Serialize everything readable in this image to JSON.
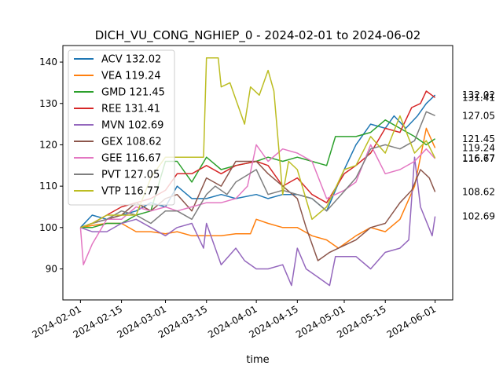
{
  "chart_data": {
    "type": "line",
    "title": "DICH_VU_CONG_NGHIEP_0 - 2024-02-01 to 2024-06-02",
    "xlabel": "time",
    "ylabel": "",
    "x_range": [
      "2024-01-26",
      "2024-06-07"
    ],
    "ylim": [
      82.5,
      144
    ],
    "x_ticks": [
      "2024-02-01",
      "2024-02-15",
      "2024-03-01",
      "2024-03-15",
      "2024-04-01",
      "2024-04-15",
      "2024-05-01",
      "2024-05-15",
      "2024-06-01"
    ],
    "y_ticks": [
      90,
      100,
      110,
      120,
      130,
      140
    ],
    "grid": false,
    "legend_position": "top-left",
    "series": [
      {
        "name": "ACV 132.02",
        "end_label": "132.02",
        "color": "#1f77b4",
        "points": [
          [
            "2024-02-01",
            100
          ],
          [
            "2024-02-05",
            103
          ],
          [
            "2024-02-10",
            102
          ],
          [
            "2024-02-20",
            104
          ],
          [
            "2024-02-25",
            106
          ],
          [
            "2024-03-01",
            105
          ],
          [
            "2024-03-05",
            110
          ],
          [
            "2024-03-10",
            107
          ],
          [
            "2024-03-15",
            107
          ],
          [
            "2024-03-20",
            108
          ],
          [
            "2024-03-25",
            107
          ],
          [
            "2024-04-01",
            108
          ],
          [
            "2024-04-05",
            107
          ],
          [
            "2024-04-10",
            108
          ],
          [
            "2024-04-15",
            108
          ],
          [
            "2024-04-20",
            107
          ],
          [
            "2024-04-25",
            104
          ],
          [
            "2024-05-01",
            114
          ],
          [
            "2024-05-05",
            120
          ],
          [
            "2024-05-10",
            125
          ],
          [
            "2024-05-15",
            124
          ],
          [
            "2024-05-18",
            127
          ],
          [
            "2024-05-22",
            124
          ],
          [
            "2024-05-26",
            127
          ],
          [
            "2024-05-29",
            130
          ],
          [
            "2024-06-01",
            132.02
          ]
        ]
      },
      {
        "name": "VEA 119.24",
        "end_label": "119.24",
        "color": "#ff7f0e",
        "points": [
          [
            "2024-02-01",
            100
          ],
          [
            "2024-02-05",
            100.5
          ],
          [
            "2024-02-10",
            101
          ],
          [
            "2024-02-15",
            101
          ],
          [
            "2024-02-20",
            99
          ],
          [
            "2024-02-25",
            99
          ],
          [
            "2024-03-01",
            98.5
          ],
          [
            "2024-03-05",
            99
          ],
          [
            "2024-03-10",
            98
          ],
          [
            "2024-03-15",
            98
          ],
          [
            "2024-03-20",
            98
          ],
          [
            "2024-03-25",
            98.5
          ],
          [
            "2024-03-30",
            98.5
          ],
          [
            "2024-04-01",
            102
          ],
          [
            "2024-04-05",
            101
          ],
          [
            "2024-04-10",
            100
          ],
          [
            "2024-04-15",
            100
          ],
          [
            "2024-04-20",
            98
          ],
          [
            "2024-04-25",
            97
          ],
          [
            "2024-04-29",
            95
          ],
          [
            "2024-05-05",
            98
          ],
          [
            "2024-05-10",
            100
          ],
          [
            "2024-05-15",
            99
          ],
          [
            "2024-05-20",
            102
          ],
          [
            "2024-05-25",
            110
          ],
          [
            "2024-05-29",
            124
          ],
          [
            "2024-06-01",
            119.24
          ]
        ]
      },
      {
        "name": "GMD 121.45",
        "end_label": "121.45",
        "color": "#2ca02c",
        "points": [
          [
            "2024-02-01",
            100
          ],
          [
            "2024-02-05",
            100
          ],
          [
            "2024-02-10",
            101
          ],
          [
            "2024-02-15",
            101
          ],
          [
            "2024-02-20",
            103
          ],
          [
            "2024-02-25",
            104
          ],
          [
            "2024-03-01",
            116
          ],
          [
            "2024-03-05",
            116
          ],
          [
            "2024-03-10",
            111
          ],
          [
            "2024-03-15",
            117
          ],
          [
            "2024-03-20",
            114
          ],
          [
            "2024-03-25",
            115
          ],
          [
            "2024-04-01",
            116
          ],
          [
            "2024-04-05",
            117
          ],
          [
            "2024-04-10",
            116
          ],
          [
            "2024-04-15",
            117
          ],
          [
            "2024-04-20",
            116
          ],
          [
            "2024-04-25",
            115
          ],
          [
            "2024-04-28",
            122
          ],
          [
            "2024-05-05",
            122
          ],
          [
            "2024-05-10",
            123
          ],
          [
            "2024-05-15",
            126
          ],
          [
            "2024-05-20",
            124
          ],
          [
            "2024-05-25",
            122
          ],
          [
            "2024-05-29",
            120
          ],
          [
            "2024-06-01",
            121.45
          ]
        ]
      },
      {
        "name": "REE 131.41",
        "end_label": "131.41",
        "color": "#d62728",
        "points": [
          [
            "2024-02-01",
            100
          ],
          [
            "2024-02-05",
            101
          ],
          [
            "2024-02-10",
            103
          ],
          [
            "2024-02-15",
            105
          ],
          [
            "2024-02-20",
            106
          ],
          [
            "2024-02-25",
            107
          ],
          [
            "2024-03-01",
            109
          ],
          [
            "2024-03-05",
            113
          ],
          [
            "2024-03-10",
            113
          ],
          [
            "2024-03-15",
            115
          ],
          [
            "2024-03-20",
            113
          ],
          [
            "2024-03-25",
            115
          ],
          [
            "2024-04-01",
            116
          ],
          [
            "2024-04-05",
            115
          ],
          [
            "2024-04-10",
            110
          ],
          [
            "2024-04-15",
            112
          ],
          [
            "2024-04-20",
            108
          ],
          [
            "2024-04-25",
            106
          ],
          [
            "2024-05-01",
            113
          ],
          [
            "2024-05-05",
            115
          ],
          [
            "2024-05-10",
            118
          ],
          [
            "2024-05-15",
            124
          ],
          [
            "2024-05-20",
            123
          ],
          [
            "2024-05-24",
            129
          ],
          [
            "2024-05-27",
            130
          ],
          [
            "2024-05-29",
            133
          ],
          [
            "2024-06-01",
            131.41
          ]
        ]
      },
      {
        "name": "MVN 102.69",
        "end_label": "102.69",
        "color": "#9467bd",
        "points": [
          [
            "2024-02-01",
            100
          ],
          [
            "2024-02-05",
            99
          ],
          [
            "2024-02-10",
            99
          ],
          [
            "2024-02-15",
            101
          ],
          [
            "2024-02-20",
            102
          ],
          [
            "2024-02-25",
            100
          ],
          [
            "2024-03-01",
            98
          ],
          [
            "2024-03-05",
            100
          ],
          [
            "2024-03-10",
            101
          ],
          [
            "2024-03-14",
            95
          ],
          [
            "2024-03-15",
            101
          ],
          [
            "2024-03-20",
            91
          ],
          [
            "2024-03-25",
            95
          ],
          [
            "2024-03-28",
            92
          ],
          [
            "2024-04-01",
            90
          ],
          [
            "2024-04-05",
            90
          ],
          [
            "2024-04-10",
            91
          ],
          [
            "2024-04-13",
            86
          ],
          [
            "2024-04-15",
            95
          ],
          [
            "2024-04-18",
            90
          ],
          [
            "2024-04-22",
            88
          ],
          [
            "2024-04-26",
            86
          ],
          [
            "2024-04-28",
            93
          ],
          [
            "2024-05-05",
            93
          ],
          [
            "2024-05-10",
            90
          ],
          [
            "2024-05-15",
            94
          ],
          [
            "2024-05-20",
            95
          ],
          [
            "2024-05-23",
            97
          ],
          [
            "2024-05-25",
            117
          ],
          [
            "2024-05-27",
            105
          ],
          [
            "2024-05-31",
            98
          ],
          [
            "2024-06-01",
            102.69
          ]
        ]
      },
      {
        "name": "GEX 108.62",
        "end_label": "108.62",
        "color": "#8c564b",
        "points": [
          [
            "2024-02-01",
            100
          ],
          [
            "2024-02-05",
            101
          ],
          [
            "2024-02-10",
            102
          ],
          [
            "2024-02-15",
            103
          ],
          [
            "2024-02-20",
            106
          ],
          [
            "2024-02-25",
            104
          ],
          [
            "2024-03-01",
            107
          ],
          [
            "2024-03-05",
            108
          ],
          [
            "2024-03-10",
            104
          ],
          [
            "2024-03-15",
            112
          ],
          [
            "2024-03-20",
            110
          ],
          [
            "2024-03-25",
            116
          ],
          [
            "2024-04-01",
            116
          ],
          [
            "2024-04-05",
            113
          ],
          [
            "2024-04-10",
            110
          ],
          [
            "2024-04-15",
            107
          ],
          [
            "2024-04-18",
            100
          ],
          [
            "2024-04-22",
            92
          ],
          [
            "2024-04-26",
            94
          ],
          [
            "2024-04-29",
            95
          ],
          [
            "2024-05-05",
            97
          ],
          [
            "2024-05-10",
            100
          ],
          [
            "2024-05-15",
            101
          ],
          [
            "2024-05-20",
            106
          ],
          [
            "2024-05-24",
            109
          ],
          [
            "2024-05-27",
            114
          ],
          [
            "2024-05-30",
            112
          ],
          [
            "2024-06-01",
            108.62
          ]
        ]
      },
      {
        "name": "GEE 116.67",
        "end_label": "116.67",
        "color": "#e377c2",
        "points": [
          [
            "2024-02-01",
            100
          ],
          [
            "2024-02-02",
            91
          ],
          [
            "2024-02-05",
            96
          ],
          [
            "2024-02-10",
            102
          ],
          [
            "2024-02-15",
            102
          ],
          [
            "2024-02-20",
            105
          ],
          [
            "2024-02-25",
            104
          ],
          [
            "2024-03-01",
            105
          ],
          [
            "2024-03-05",
            104
          ],
          [
            "2024-03-10",
            105
          ],
          [
            "2024-03-15",
            106
          ],
          [
            "2024-03-20",
            106
          ],
          [
            "2024-03-25",
            107
          ],
          [
            "2024-03-29",
            110
          ],
          [
            "2024-04-01",
            120
          ],
          [
            "2024-04-05",
            116
          ],
          [
            "2024-04-10",
            119
          ],
          [
            "2024-04-15",
            118
          ],
          [
            "2024-04-20",
            116
          ],
          [
            "2024-04-25",
            107
          ],
          [
            "2024-05-01",
            109
          ],
          [
            "2024-05-05",
            111
          ],
          [
            "2024-05-10",
            120
          ],
          [
            "2024-05-15",
            113
          ],
          [
            "2024-05-20",
            114
          ],
          [
            "2024-05-25",
            116
          ],
          [
            "2024-05-29",
            119
          ],
          [
            "2024-06-01",
            116.67
          ]
        ]
      },
      {
        "name": "PVT 127.05",
        "end_label": "127.05",
        "color": "#7f7f7f",
        "points": [
          [
            "2024-02-01",
            100
          ],
          [
            "2024-02-05",
            101
          ],
          [
            "2024-02-10",
            102
          ],
          [
            "2024-02-15",
            104
          ],
          [
            "2024-02-20",
            103
          ],
          [
            "2024-02-25",
            101
          ],
          [
            "2024-03-01",
            104
          ],
          [
            "2024-03-05",
            104
          ],
          [
            "2024-03-10",
            102
          ],
          [
            "2024-03-15",
            108
          ],
          [
            "2024-03-18",
            110
          ],
          [
            "2024-03-22",
            108
          ],
          [
            "2024-03-25",
            111
          ],
          [
            "2024-04-01",
            114
          ],
          [
            "2024-04-05",
            108
          ],
          [
            "2024-04-10",
            109
          ],
          [
            "2024-04-15",
            108
          ],
          [
            "2024-04-20",
            107
          ],
          [
            "2024-04-25",
            104
          ],
          [
            "2024-04-30",
            108
          ],
          [
            "2024-05-05",
            112
          ],
          [
            "2024-05-10",
            119
          ],
          [
            "2024-05-15",
            120
          ],
          [
            "2024-05-20",
            119
          ],
          [
            "2024-05-25",
            121
          ],
          [
            "2024-05-29",
            128
          ],
          [
            "2024-06-01",
            127.05
          ]
        ]
      },
      {
        "name": "VTP 116.77",
        "end_label": "116.77",
        "color": "#bcbd22",
        "points": [
          [
            "2024-02-01",
            100
          ],
          [
            "2024-02-05",
            101
          ],
          [
            "2024-02-10",
            103
          ],
          [
            "2024-02-20",
            103
          ],
          [
            "2024-02-25",
            112
          ],
          [
            "2024-03-01",
            117
          ],
          [
            "2024-03-05",
            117
          ],
          [
            "2024-03-10",
            117
          ],
          [
            "2024-03-14",
            117
          ],
          [
            "2024-03-15",
            141
          ],
          [
            "2024-03-19",
            141
          ],
          [
            "2024-03-20",
            134
          ],
          [
            "2024-03-23",
            135
          ],
          [
            "2024-03-25",
            131
          ],
          [
            "2024-03-28",
            125
          ],
          [
            "2024-03-30",
            134
          ],
          [
            "2024-04-02",
            132
          ],
          [
            "2024-04-05",
            138
          ],
          [
            "2024-04-07",
            133
          ],
          [
            "2024-04-10",
            108
          ],
          [
            "2024-04-12",
            116
          ],
          [
            "2024-04-15",
            114
          ],
          [
            "2024-04-20",
            102
          ],
          [
            "2024-04-25",
            105
          ],
          [
            "2024-05-01",
            114
          ],
          [
            "2024-05-05",
            115
          ],
          [
            "2024-05-10",
            122
          ],
          [
            "2024-05-15",
            118
          ],
          [
            "2024-05-20",
            127
          ],
          [
            "2024-05-25",
            118
          ],
          [
            "2024-05-29",
            121
          ],
          [
            "2024-06-01",
            116.77
          ]
        ]
      }
    ]
  }
}
